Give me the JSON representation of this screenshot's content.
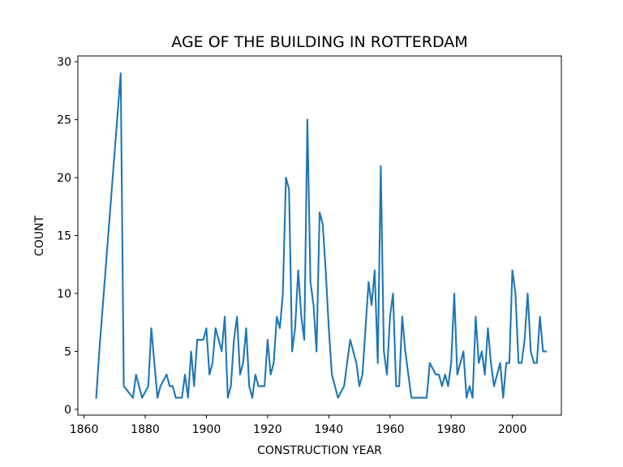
{
  "chart_data": {
    "type": "line",
    "title": "AGE OF THE BUILDING IN ROTTERDAM",
    "xlabel": "CONSTRUCTION YEAR",
    "ylabel": "COUNT",
    "xlim": [
      1858,
      2016
    ],
    "ylim": [
      -0.5,
      30.5
    ],
    "xticks": [
      1860,
      1880,
      1900,
      1920,
      1940,
      1960,
      1980,
      2000
    ],
    "yticks": [
      0,
      5,
      10,
      15,
      20,
      25,
      30
    ],
    "grid": false,
    "series": [
      {
        "color": "#1f77b4",
        "x": [
          1864,
          1865,
          1872,
          1873,
          1876,
          1877,
          1878,
          1879,
          1881,
          1882,
          1883,
          1884,
          1885,
          1887,
          1888,
          1889,
          1890,
          1892,
          1893,
          1894,
          1895,
          1896,
          1897,
          1898,
          1899,
          1900,
          1901,
          1902,
          1903,
          1905,
          1906,
          1907,
          1908,
          1909,
          1910,
          1911,
          1912,
          1913,
          1914,
          1915,
          1916,
          1917,
          1919,
          1920,
          1921,
          1922,
          1923,
          1924,
          1925,
          1926,
          1927,
          1928,
          1929,
          1930,
          1931,
          1932,
          1933,
          1934,
          1935,
          1936,
          1937,
          1938,
          1939,
          1940,
          1941,
          1942,
          1943,
          1945,
          1946,
          1947,
          1948,
          1949,
          1950,
          1951,
          1952,
          1953,
          1954,
          1955,
          1956,
          1957,
          1958,
          1959,
          1960,
          1961,
          1962,
          1963,
          1964,
          1965,
          1967,
          1968,
          1969,
          1970,
          1971,
          1972,
          1973,
          1975,
          1976,
          1977,
          1978,
          1979,
          1980,
          1981,
          1982,
          1983,
          1984,
          1985,
          1986,
          1987,
          1988,
          1989,
          1990,
          1991,
          1992,
          1993,
          1994,
          1995,
          1996,
          1997,
          1998,
          1999,
          2000,
          2001,
          2002,
          2003,
          2004,
          2005,
          2006,
          2007,
          2008,
          2009,
          2010,
          2011
        ],
        "y": [
          1,
          5,
          29,
          2,
          1,
          3,
          2,
          1,
          2,
          7,
          4,
          1,
          2,
          3,
          2,
          2,
          1,
          1,
          3,
          1,
          5,
          2,
          6,
          6,
          6,
          7,
          3,
          4,
          7,
          5,
          8,
          1,
          2,
          6,
          8,
          3,
          4,
          7,
          2,
          1,
          3,
          2,
          2,
          6,
          3,
          4,
          8,
          7,
          10,
          20,
          19,
          5,
          7,
          12,
          8,
          6,
          25,
          11,
          9,
          5,
          17,
          16,
          12,
          7,
          3,
          2,
          1,
          2,
          4,
          6,
          5,
          4,
          2,
          3,
          7,
          11,
          9,
          12,
          4,
          21,
          5,
          3,
          8,
          10,
          2,
          2,
          8,
          5,
          1,
          1,
          1,
          1,
          1,
          1,
          4,
          3,
          3,
          2,
          3,
          2,
          4,
          10,
          3,
          4,
          5,
          1,
          2,
          1,
          8,
          4,
          5,
          3,
          7,
          4,
          2,
          3,
          4,
          1,
          4,
          4,
          12,
          10,
          4,
          4,
          6,
          10,
          5,
          4,
          4,
          8,
          5,
          5
        ]
      }
    ]
  }
}
